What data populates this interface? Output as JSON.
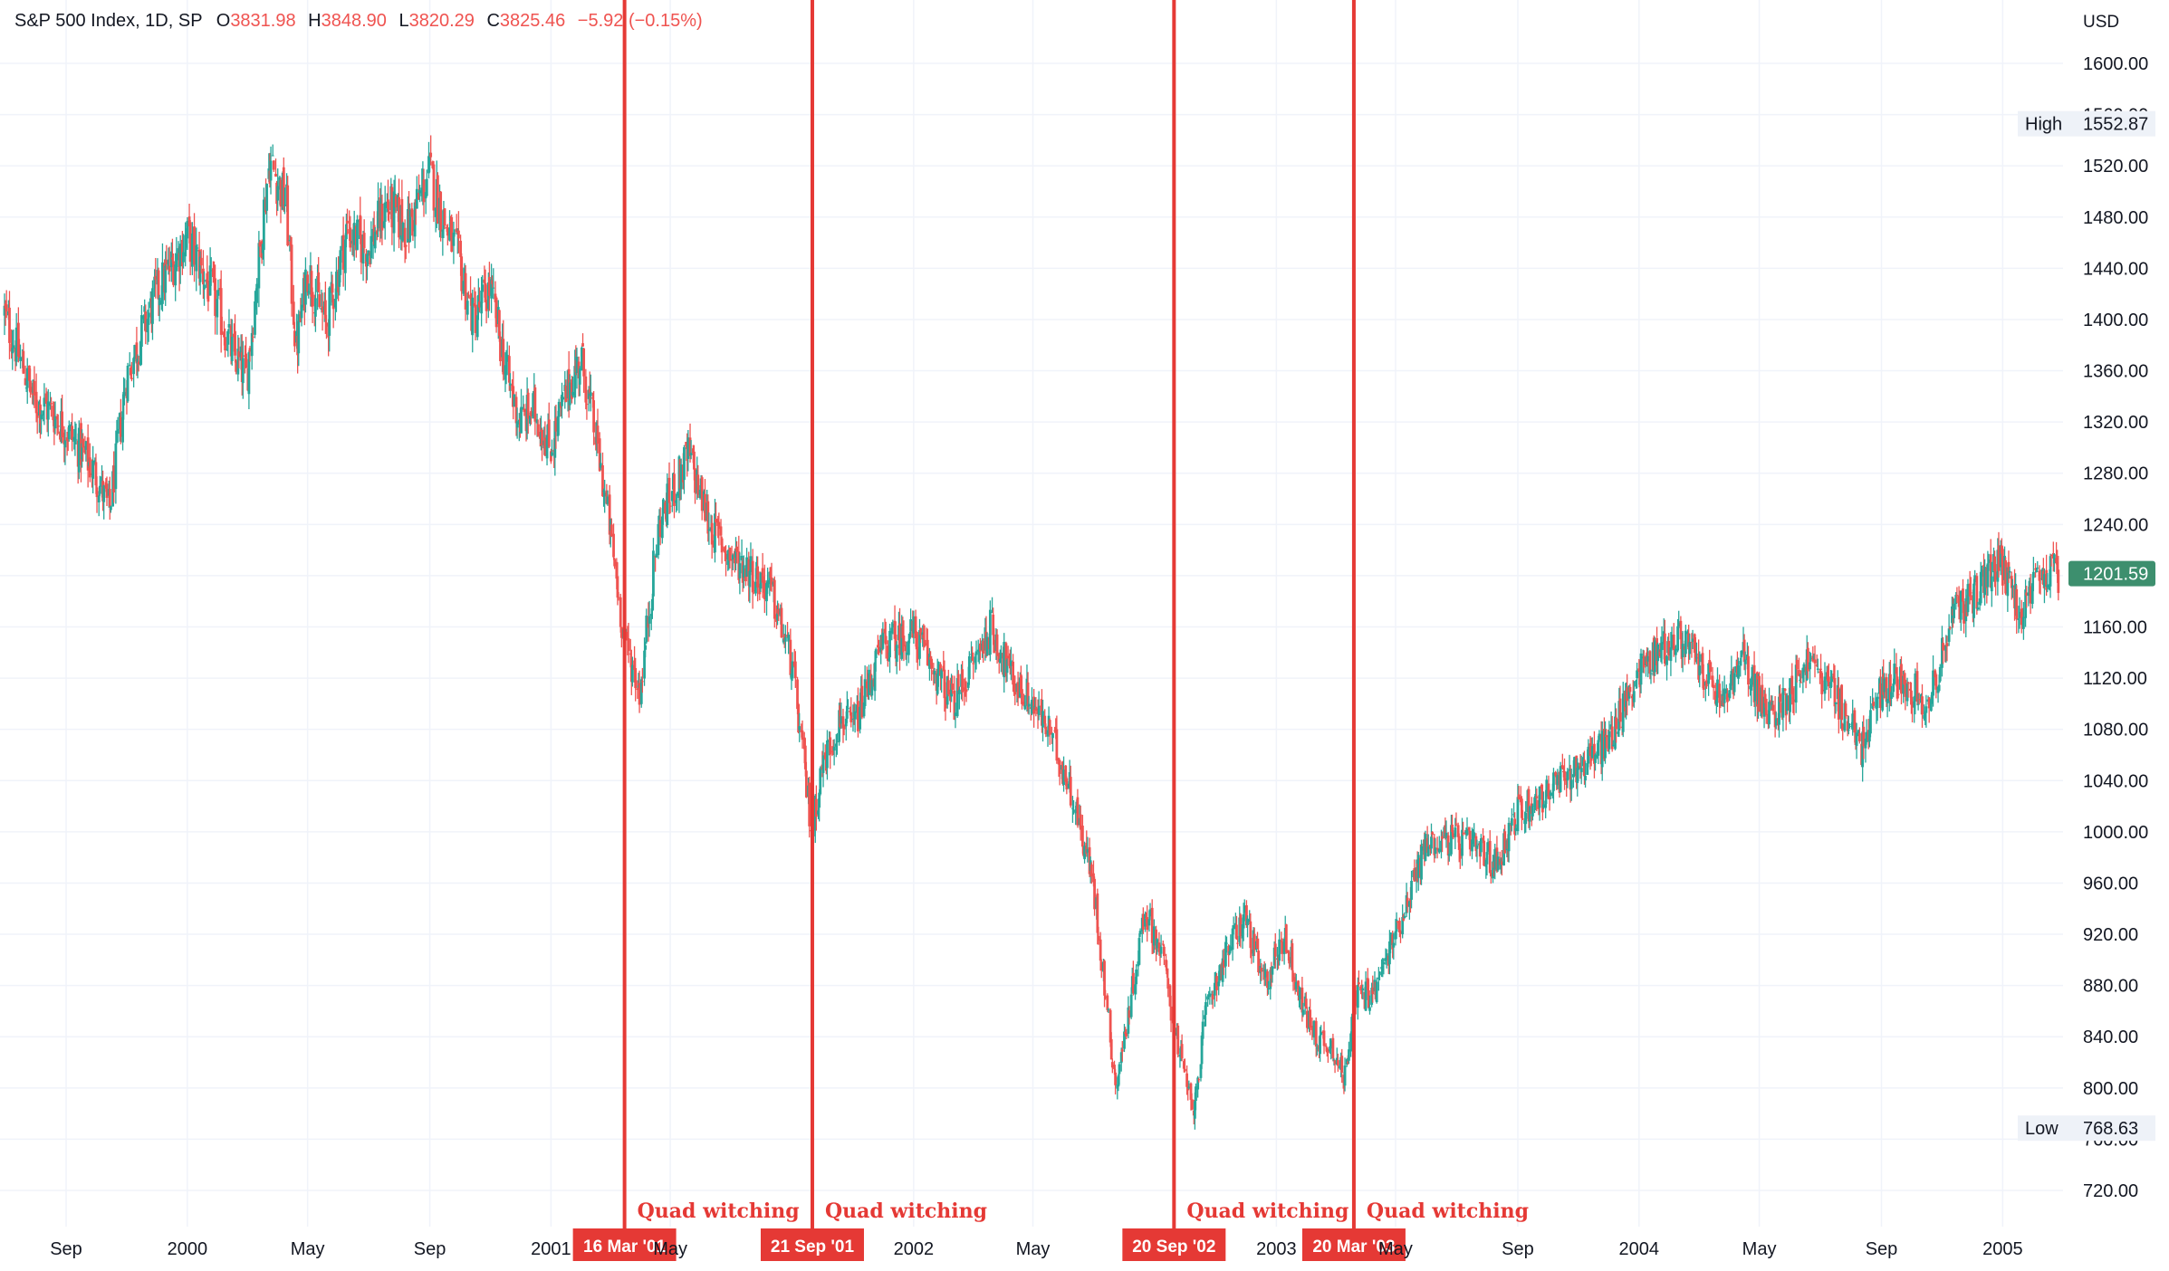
{
  "legend": {
    "symbol": "S&P 500 Index, 1D, SP",
    "open_label": "O",
    "open": "3831.98",
    "high_label": "H",
    "high": "3848.90",
    "low_label": "L",
    "low": "3820.29",
    "close_label": "C",
    "close": "3825.46",
    "change": "−5.92 (−0.15%)"
  },
  "colors": {
    "up": "#26a69a",
    "down": "#ef5350",
    "event": "#e53935",
    "last_price": "#3d8f6e",
    "grid": "#f0f3fa"
  },
  "chart_data": {
    "type": "candlestick",
    "currency": "USD",
    "ylim": [
      680,
      1640
    ],
    "y_ticks": [
      "1600.00",
      "1560.00",
      "1520.00",
      "1480.00",
      "1440.00",
      "1400.00",
      "1360.00",
      "1320.00",
      "1280.00",
      "1240.00",
      "1200.00",
      "1160.00",
      "1120.00",
      "1080.00",
      "1040.00",
      "1000.00",
      "960.00",
      "920.00",
      "880.00",
      "840.00",
      "800.00",
      "760.00",
      "720.00"
    ],
    "x_range": [
      "1999-07-01",
      "2005-02-28"
    ],
    "x_ticks": [
      {
        "date": "1999-09-01",
        "label": "Sep"
      },
      {
        "date": "2000-01-01",
        "label": "2000"
      },
      {
        "date": "2000-05-01",
        "label": "May"
      },
      {
        "date": "2000-09-01",
        "label": "Sep"
      },
      {
        "date": "2001-01-01",
        "label": "2001"
      },
      {
        "date": "2001-05-01",
        "label": "May"
      },
      {
        "date": "2002-01-01",
        "label": "2002"
      },
      {
        "date": "2002-05-01",
        "label": "May"
      },
      {
        "date": "2003-01-01",
        "label": "2003"
      },
      {
        "date": "2003-05-01",
        "label": "May"
      },
      {
        "date": "2003-09-01",
        "label": "Sep"
      },
      {
        "date": "2004-01-01",
        "label": "2004"
      },
      {
        "date": "2004-05-01",
        "label": "May"
      },
      {
        "date": "2004-09-01",
        "label": "Sep"
      },
      {
        "date": "2005-01-01",
        "label": "2005"
      }
    ],
    "high_label": "High",
    "high_value": "1552.87",
    "low_label": "Low",
    "low_value": "768.63",
    "last_price": "1201.59",
    "events": [
      {
        "date": "2001-03-16",
        "label": "16 Mar '01",
        "annotation": "Quad witching"
      },
      {
        "date": "2001-09-21",
        "label": "21 Sep '01",
        "annotation": "Quad witching"
      },
      {
        "date": "2002-09-20",
        "label": "20 Sep '02",
        "annotation": "Quad witching"
      },
      {
        "date": "2003-03-20",
        "label": "20 Mar '03",
        "annotation": "Quad witching"
      }
    ],
    "series": [
      {
        "points": [
          [
            "1999-07-01",
            1405
          ],
          [
            "1999-08-01",
            1335
          ],
          [
            "1999-08-15",
            1330
          ],
          [
            "1999-09-01",
            1315
          ],
          [
            "1999-10-01",
            1280
          ],
          [
            "1999-10-15",
            1250
          ],
          [
            "1999-11-01",
            1355
          ],
          [
            "1999-12-01",
            1420
          ],
          [
            "2000-01-01",
            1465
          ],
          [
            "2000-01-15",
            1440
          ],
          [
            "2000-02-01",
            1410
          ],
          [
            "2000-02-15",
            1375
          ],
          [
            "2000-03-01",
            1355
          ],
          [
            "2000-03-24",
            1525
          ],
          [
            "2000-04-10",
            1490
          ],
          [
            "2000-04-20",
            1375
          ],
          [
            "2000-05-01",
            1440
          ],
          [
            "2000-05-20",
            1395
          ],
          [
            "2000-06-10",
            1470
          ],
          [
            "2000-07-01",
            1455
          ],
          [
            "2000-07-20",
            1490
          ],
          [
            "2000-08-10",
            1470
          ],
          [
            "2000-09-01",
            1515
          ],
          [
            "2000-09-15",
            1480
          ],
          [
            "2000-10-01",
            1445
          ],
          [
            "2000-10-15",
            1400
          ],
          [
            "2000-11-01",
            1425
          ],
          [
            "2000-11-20",
            1350
          ],
          [
            "2000-12-01",
            1320
          ],
          [
            "2000-12-15",
            1330
          ],
          [
            "2001-01-01",
            1300
          ],
          [
            "2001-01-20",
            1350
          ],
          [
            "2001-02-01",
            1370
          ],
          [
            "2001-02-15",
            1310
          ],
          [
            "2001-03-01",
            1240
          ],
          [
            "2001-03-16",
            1150
          ],
          [
            "2001-04-01",
            1110
          ],
          [
            "2001-04-20",
            1240
          ],
          [
            "2001-05-01",
            1260
          ],
          [
            "2001-05-20",
            1295
          ],
          [
            "2001-06-10",
            1240
          ],
          [
            "2001-07-01",
            1215
          ],
          [
            "2001-07-20",
            1205
          ],
          [
            "2001-08-10",
            1190
          ],
          [
            "2001-09-01",
            1130
          ],
          [
            "2001-09-21",
            1000
          ],
          [
            "2001-10-01",
            1050
          ],
          [
            "2001-10-20",
            1090
          ],
          [
            "2001-11-01",
            1080
          ],
          [
            "2001-12-01",
            1145
          ],
          [
            "2002-01-01",
            1155
          ],
          [
            "2002-01-20",
            1130
          ],
          [
            "2002-02-10",
            1100
          ],
          [
            "2002-03-01",
            1130
          ],
          [
            "2002-03-20",
            1160
          ],
          [
            "2002-04-10",
            1120
          ],
          [
            "2002-05-01",
            1100
          ],
          [
            "2002-05-20",
            1075
          ],
          [
            "2002-06-10",
            1030
          ],
          [
            "2002-07-01",
            960
          ],
          [
            "2002-07-24",
            800
          ],
          [
            "2002-08-10",
            880
          ],
          [
            "2002-08-22",
            940
          ],
          [
            "2002-09-10",
            900
          ],
          [
            "2002-09-20",
            850
          ],
          [
            "2002-10-09",
            780
          ],
          [
            "2002-10-25",
            870
          ],
          [
            "2002-11-15",
            910
          ],
          [
            "2002-12-01",
            935
          ],
          [
            "2002-12-20",
            880
          ],
          [
            "2003-01-10",
            920
          ],
          [
            "2003-01-25",
            870
          ],
          [
            "2003-02-10",
            840
          ],
          [
            "2003-03-01",
            830
          ],
          [
            "2003-03-11",
            805
          ],
          [
            "2003-03-20",
            870
          ],
          [
            "2003-04-10",
            875
          ],
          [
            "2003-05-01",
            920
          ],
          [
            "2003-06-01",
            990
          ],
          [
            "2003-06-20",
            995
          ],
          [
            "2003-07-15",
            990
          ],
          [
            "2003-08-10",
            975
          ],
          [
            "2003-09-01",
            1015
          ],
          [
            "2003-10-01",
            1030
          ],
          [
            "2003-11-01",
            1050
          ],
          [
            "2003-12-01",
            1070
          ],
          [
            "2004-01-01",
            1125
          ],
          [
            "2004-01-25",
            1145
          ],
          [
            "2004-02-15",
            1150
          ],
          [
            "2004-03-10",
            1120
          ],
          [
            "2004-03-25",
            1100
          ],
          [
            "2004-04-15",
            1135
          ],
          [
            "2004-05-10",
            1090
          ],
          [
            "2004-05-25",
            1100
          ],
          [
            "2004-06-20",
            1135
          ],
          [
            "2004-07-15",
            1110
          ],
          [
            "2004-08-12",
            1065
          ],
          [
            "2004-09-01",
            1110
          ],
          [
            "2004-09-20",
            1120
          ],
          [
            "2004-10-20",
            1100
          ],
          [
            "2004-11-10",
            1165
          ],
          [
            "2004-12-01",
            1185
          ],
          [
            "2004-12-30",
            1210
          ],
          [
            "2005-01-20",
            1170
          ],
          [
            "2005-02-10",
            1200
          ],
          [
            "2005-02-28",
            1201.59
          ]
        ]
      }
    ]
  }
}
